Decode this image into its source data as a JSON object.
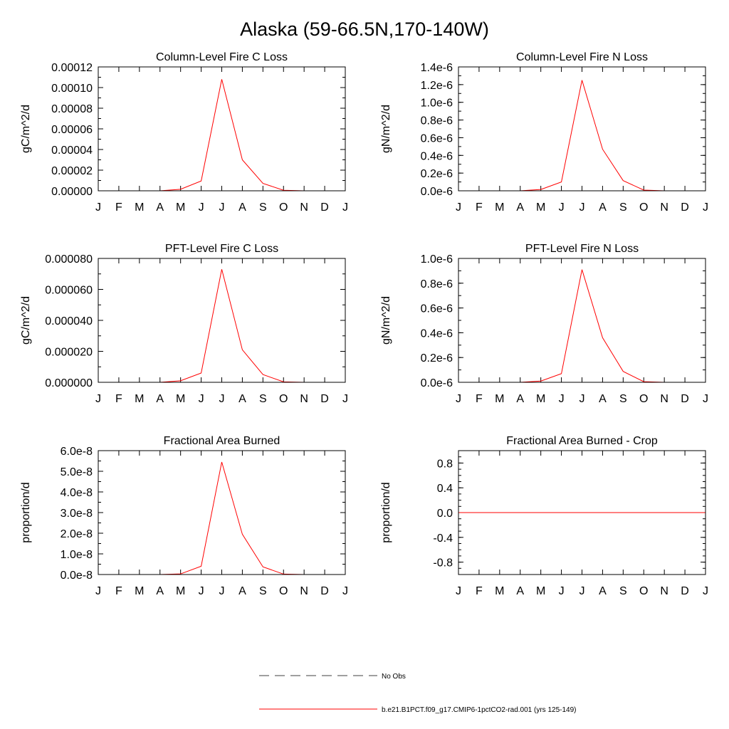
{
  "figure": {
    "title": "Alaska (59-66.5N,170-140W)"
  },
  "legend": {
    "obs_label": "No Obs",
    "model_label": "b.e21.B1PCT.f09_g17.CMIP6-1pctCO2-rad.001 (yrs 125-149)",
    "model_color": "#ff0000",
    "obs_color": "#000000"
  },
  "chart_data": [
    {
      "type": "line",
      "title": "Column-Level Fire C Loss",
      "ylabel": "gC/m^2/d",
      "x": [
        "J",
        "F",
        "M",
        "A",
        "M",
        "J",
        "J",
        "A",
        "S",
        "O",
        "N",
        "D",
        "J"
      ],
      "ylim": [
        0,
        0.00012
      ],
      "ytick_values": [
        0,
        2e-05,
        4e-05,
        6e-05,
        8e-05,
        0.0001,
        0.00012
      ],
      "ytick_labels": [
        "0.00000",
        "0.00002",
        "0.00004",
        "0.00006",
        "0.00008",
        "0.00010",
        "0.00012"
      ],
      "yminor_step": 1e-05,
      "series": [
        {
          "color": "#ff0000",
          "values": [
            0,
            0,
            0,
            0,
            1.5e-06,
            9.5e-06,
            0.000108,
            3e-05,
            7.2e-06,
            5e-07,
            0,
            0,
            0
          ]
        }
      ]
    },
    {
      "type": "line",
      "title": "Column-Level Fire N Loss",
      "ylabel": "gN/m^2/d",
      "x": [
        "J",
        "F",
        "M",
        "A",
        "M",
        "J",
        "J",
        "A",
        "S",
        "O",
        "N",
        "D",
        "J"
      ],
      "ylim": [
        0,
        1.4e-06
      ],
      "ytick_values": [
        0,
        2e-07,
        4e-07,
        6e-07,
        8e-07,
        1e-06,
        1.2e-06,
        1.4e-06
      ],
      "ytick_labels": [
        "0.0e-6",
        "0.2e-6",
        "0.4e-6",
        "0.6e-6",
        "0.8e-6",
        "1.0e-6",
        "1.2e-6",
        "1.4e-6"
      ],
      "yminor_step": 1e-07,
      "series": [
        {
          "color": "#ff0000",
          "values": [
            0,
            0,
            0,
            0,
            1.5e-08,
            1e-07,
            1.25e-06,
            4.7e-07,
            1.15e-07,
            8e-09,
            0,
            0,
            0
          ]
        }
      ]
    },
    {
      "type": "line",
      "title": "PFT-Level Fire C Loss",
      "ylabel": "gC/m^2/d",
      "x": [
        "J",
        "F",
        "M",
        "A",
        "M",
        "J",
        "J",
        "A",
        "S",
        "O",
        "N",
        "D",
        "J"
      ],
      "ylim": [
        0,
        8e-05
      ],
      "ytick_values": [
        0,
        2e-05,
        4e-05,
        6e-05,
        8e-05
      ],
      "ytick_labels": [
        "0.000000",
        "0.000020",
        "0.000040",
        "0.000060",
        "0.000080"
      ],
      "yminor_step": 1e-05,
      "series": [
        {
          "color": "#ff0000",
          "values": [
            0,
            0,
            0,
            0,
            1e-06,
            6e-06,
            7.3e-05,
            2.1e-05,
            5e-06,
            3e-07,
            0,
            0,
            0
          ]
        }
      ]
    },
    {
      "type": "line",
      "title": "PFT-Level Fire N Loss",
      "ylabel": "gN/m^2/d",
      "x": [
        "J",
        "F",
        "M",
        "A",
        "M",
        "J",
        "J",
        "A",
        "S",
        "O",
        "N",
        "D",
        "J"
      ],
      "ylim": [
        0,
        1e-06
      ],
      "ytick_values": [
        0,
        2e-07,
        4e-07,
        6e-07,
        8e-07,
        1e-06
      ],
      "ytick_labels": [
        "0.0e-6",
        "0.2e-6",
        "0.4e-6",
        "0.6e-6",
        "0.8e-6",
        "1.0e-6"
      ],
      "yminor_step": 1e-07,
      "series": [
        {
          "color": "#ff0000",
          "values": [
            0,
            0,
            0,
            0,
            1e-08,
            7e-08,
            9.1e-07,
            3.6e-07,
            8.8e-08,
            5e-09,
            0,
            0,
            0
          ]
        }
      ]
    },
    {
      "type": "line",
      "title": "Fractional Area Burned",
      "ylabel": "proportion/d",
      "x": [
        "J",
        "F",
        "M",
        "A",
        "M",
        "J",
        "J",
        "A",
        "S",
        "O",
        "N",
        "D",
        "J"
      ],
      "ylim": [
        0,
        6e-08
      ],
      "ytick_values": [
        0,
        1e-08,
        2e-08,
        3e-08,
        4e-08,
        5e-08,
        6e-08
      ],
      "ytick_labels": [
        "0.0e-8",
        "1.0e-8",
        "2.0e-8",
        "3.0e-8",
        "4.0e-8",
        "5.0e-8",
        "6.0e-8"
      ],
      "yminor_step": 5e-09,
      "series": [
        {
          "color": "#ff0000",
          "values": [
            0,
            0,
            0,
            0,
            3e-10,
            4e-09,
            5.45e-08,
            1.95e-08,
            3.7e-09,
            2e-10,
            0,
            0,
            0
          ]
        }
      ]
    },
    {
      "type": "line",
      "title": "Fractional Area Burned - Crop",
      "ylabel": "proportion/d",
      "x": [
        "J",
        "F",
        "M",
        "A",
        "M",
        "J",
        "J",
        "A",
        "S",
        "O",
        "N",
        "D",
        "J"
      ],
      "ylim": [
        -1.0,
        1.0
      ],
      "ytick_values": [
        -0.8,
        -0.4,
        0,
        0.4,
        0.8
      ],
      "ytick_labels": [
        "-0.8",
        "-0.4",
        "0.0",
        "0.4",
        "0.8"
      ],
      "yminor_step": 0.1,
      "series": [
        {
          "color": "#ff0000",
          "values": [
            0,
            0,
            0,
            0,
            0,
            0,
            0,
            0,
            0,
            0,
            0,
            0,
            0
          ]
        }
      ]
    }
  ]
}
